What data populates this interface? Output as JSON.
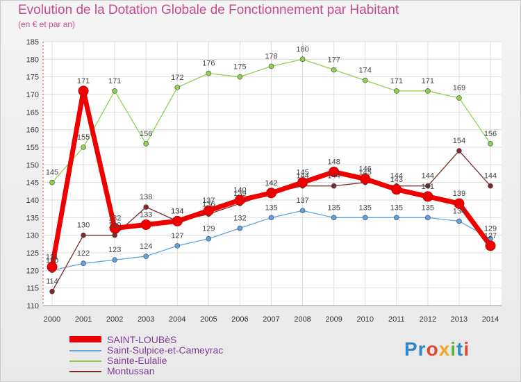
{
  "chart_data": {
    "type": "line",
    "title": "Evolution de la Dotation Globale de Fonctionnement par Habitant",
    "subtitle": "(en € et par an)",
    "categories": [
      "2000",
      "2001",
      "2002",
      "2003",
      "2004",
      "2005",
      "2006",
      "2007",
      "2008",
      "2009",
      "2010",
      "2011",
      "2012",
      "2013",
      "2014"
    ],
    "ylim": [
      110,
      185
    ],
    "yticks": [
      110,
      115,
      120,
      125,
      130,
      135,
      140,
      145,
      150,
      155,
      160,
      165,
      170,
      175,
      180,
      185
    ],
    "series": [
      {
        "name": "SAINT-LOUBèS",
        "color": "#ee0000",
        "values": [
          121,
          171,
          132,
          133,
          134,
          137,
          140,
          142,
          145,
          148,
          146,
          143,
          141,
          139,
          127
        ]
      },
      {
        "name": "Saint-Sulpice-et-Cameyrac",
        "color": "#5fa2dc",
        "values": [
          120,
          122,
          123,
          124,
          127,
          129,
          132,
          135,
          137,
          135,
          135,
          135,
          135,
          134,
          129
        ]
      },
      {
        "name": "Sainte-Eulalie",
        "color": "#8fd14f",
        "values": [
          145,
          155,
          171,
          156,
          172,
          176,
          175,
          178,
          180,
          177,
          174,
          171,
          171,
          169,
          156
        ]
      },
      {
        "name": "Montussan",
        "color": "#7a2a2a",
        "values": [
          114,
          130,
          130,
          138,
          134,
          136,
          139,
          142,
          144,
          144,
          145,
          144,
          144,
          154,
          144
        ]
      }
    ]
  },
  "brand": {
    "logo": [
      "Pr",
      "o",
      "x",
      "i",
      "t",
      "i"
    ]
  }
}
